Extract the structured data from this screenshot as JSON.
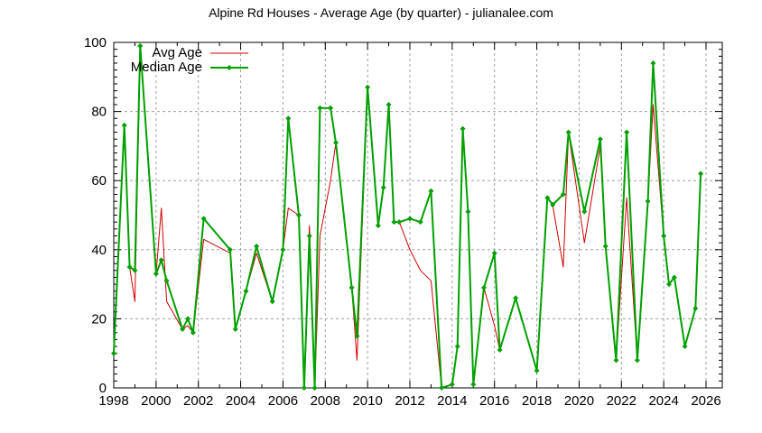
{
  "chart_data": {
    "type": "line",
    "title": "Alpine Rd Houses - Average Age (by quarter) - julianalee.com",
    "xlabel": "",
    "ylabel": "",
    "xlim": [
      1998,
      2026.8
    ],
    "ylim": [
      0,
      100
    ],
    "xticks": [
      "1998",
      "2000",
      "2002",
      "2004",
      "2006",
      "2008",
      "2010",
      "2012",
      "2014",
      "2016",
      "2018",
      "2020",
      "2022",
      "2024",
      "2026"
    ],
    "yticks": [
      "0",
      "20",
      "40",
      "60",
      "80",
      "100"
    ],
    "grid": true,
    "legend_position": "top-left",
    "series": [
      {
        "name": "Avg Age",
        "color": "#cc0000",
        "marker": "none",
        "x": [
          1998.0,
          1998.5,
          1998.75,
          1999.0,
          1999.25,
          2000.0,
          2000.25,
          2000.5,
          2001.25,
          2001.5,
          2001.75,
          2002.25,
          2003.5,
          2003.75,
          2004.25,
          2004.75,
          2005.5,
          2006.0,
          2006.25,
          2006.75,
          2007.0,
          2007.25,
          2007.5,
          2007.75,
          2008.25,
          2008.5,
          2009.25,
          2009.5,
          2010.0,
          2010.5,
          2010.75,
          2011.0,
          2011.25,
          2011.5,
          2012.0,
          2012.5,
          2013.0,
          2013.5,
          2014.0,
          2014.25,
          2014.5,
          2014.75,
          2015.0,
          2015.5,
          2016.0,
          2016.25,
          2017.0,
          2018.0,
          2018.5,
          2018.75,
          2019.25,
          2019.5,
          2020.25,
          2021.0,
          2021.25,
          2021.75,
          2022.25,
          2022.75,
          2023.25,
          2023.5,
          2024.0,
          2024.25,
          2024.5,
          2025.0,
          2025.5,
          2025.75
        ],
        "values": [
          10,
          76,
          35,
          25,
          99,
          33,
          52,
          25,
          17,
          18,
          16,
          43,
          39,
          17,
          28,
          39,
          25,
          40,
          52,
          50,
          0,
          47,
          0,
          44,
          60,
          71,
          29,
          8,
          87,
          47,
          58,
          82,
          48,
          48,
          40,
          34,
          31,
          0,
          1,
          12,
          75,
          51,
          1,
          29,
          18,
          11,
          26,
          5,
          55,
          53,
          35,
          74,
          42,
          70,
          41,
          8,
          55,
          8,
          54,
          82,
          44,
          30,
          32,
          12,
          23,
          62
        ]
      },
      {
        "name": "Median Age",
        "color": "#00a000",
        "marker": "diamond",
        "x": [
          1998.0,
          1998.5,
          1998.75,
          1999.0,
          1999.25,
          2000.0,
          2000.25,
          2000.5,
          2001.25,
          2001.5,
          2001.75,
          2002.25,
          2003.5,
          2003.75,
          2004.25,
          2004.75,
          2005.5,
          2006.0,
          2006.25,
          2006.75,
          2007.0,
          2007.25,
          2007.5,
          2007.75,
          2008.25,
          2008.5,
          2009.25,
          2009.5,
          2010.0,
          2010.5,
          2010.75,
          2011.0,
          2011.25,
          2011.5,
          2012.0,
          2012.5,
          2013.0,
          2013.5,
          2014.0,
          2014.25,
          2014.5,
          2014.75,
          2015.0,
          2015.5,
          2016.0,
          2016.25,
          2017.0,
          2018.0,
          2018.5,
          2018.75,
          2019.25,
          2019.5,
          2020.25,
          2021.0,
          2021.25,
          2021.75,
          2022.25,
          2022.75,
          2023.25,
          2023.5,
          2024.0,
          2024.25,
          2024.5,
          2025.0,
          2025.5,
          2025.75
        ],
        "values": [
          10,
          76,
          35,
          34,
          99,
          33,
          37,
          31,
          17,
          20,
          16,
          49,
          40,
          17,
          28,
          41,
          25,
          40,
          78,
          50,
          0,
          44,
          0,
          81,
          81,
          71,
          29,
          15,
          87,
          47,
          58,
          82,
          48,
          48,
          49,
          48,
          57,
          0,
          1,
          12,
          75,
          51,
          1,
          29,
          39,
          11,
          26,
          5,
          55,
          53,
          56,
          74,
          51,
          72,
          41,
          8,
          74,
          8,
          54,
          94,
          44,
          30,
          32,
          12,
          23,
          62
        ]
      }
    ]
  },
  "legend": {
    "avg_label": "Avg Age",
    "median_label": "Median Age"
  }
}
